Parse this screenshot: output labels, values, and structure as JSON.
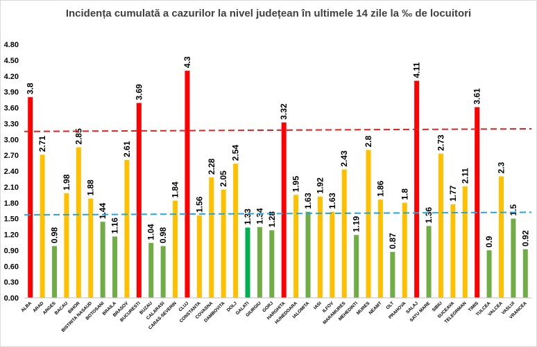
{
  "chart_data": {
    "type": "bar",
    "title": "Incidența cumulată a cazurilor la nivel județean în ultimele 14 zile la ‰ de locuitori",
    "xlabel": "",
    "ylabel": "",
    "ylim": [
      0,
      4.8
    ],
    "yticks": [
      "0.00",
      "0.30",
      "0.60",
      "0.90",
      "1.20",
      "1.50",
      "1.80",
      "2.10",
      "2.40",
      "2.70",
      "3.00",
      "3.30",
      "3.60",
      "3.90",
      "4.20",
      "4.50",
      "4.80"
    ],
    "ytick_values": [
      0,
      0.3,
      0.6,
      0.9,
      1.2,
      1.5,
      1.8,
      2.1,
      2.4,
      2.7,
      3.0,
      3.3,
      3.6,
      3.9,
      4.2,
      4.5,
      4.8
    ],
    "grid": false,
    "categories": [
      "ALBA",
      "ARAD",
      "ARGES",
      "BACAU",
      "BIHOR",
      "BISTRITA NASAUD",
      "BOTOSANI",
      "BRAILA",
      "BRASOV",
      "BUCURESTI",
      "BUZAU",
      "CALARASI",
      "CARAS-SEVERIN",
      "CLUJ",
      "CONSTANTA",
      "COVASNA",
      "DAMBOVITA",
      "DOLJ",
      "GALATI",
      "GIURGIU",
      "GORJ",
      "HARGHITA",
      "HUNEDOARA",
      "IALOMITA",
      "IASI",
      "ILFOV",
      "MARAMURES",
      "MEHEDINTI",
      "MURES",
      "NEAMT",
      "OLT",
      "PRAHOVA",
      "SALAJ",
      "SATU MARE",
      "SIBIU",
      "SUCEAVA",
      "TELEORMAN",
      "TIMIS",
      "TULCEA",
      "VALCEA",
      "VASLUI",
      "VRANCEA"
    ],
    "values": [
      3.8,
      2.71,
      0.98,
      1.98,
      2.85,
      1.88,
      1.44,
      1.16,
      2.61,
      3.69,
      1.04,
      0.98,
      1.84,
      4.3,
      1.56,
      2.28,
      2.05,
      2.54,
      1.33,
      1.34,
      1.28,
      3.32,
      1.95,
      1.63,
      1.92,
      1.63,
      2.43,
      1.19,
      2.8,
      1.86,
      0.87,
      1.8,
      4.11,
      1.36,
      2.73,
      1.77,
      2.11,
      3.61,
      0.9,
      2.3,
      1.5,
      0.92
    ],
    "value_labels": [
      "3.8",
      "2.71",
      "0.98",
      "1.98",
      "2.85",
      "1.88",
      "1.44",
      "1.16",
      "2.61",
      "3.69",
      "1.04",
      "0.98",
      "1.84",
      "4.3",
      "1.56",
      "2.28",
      "2.05",
      "2.54",
      "1.33",
      "1.34",
      "1.28",
      "3.32",
      "1.95",
      "1.63",
      "1.92",
      "1.63",
      "2.43",
      "1.19",
      "2.8",
      "1.86",
      "0.87",
      "1.8",
      "4.11",
      "1.36",
      "2.73",
      "1.77",
      "2.11",
      "3.61",
      "0.9",
      "2.3",
      "1.5",
      "0.92"
    ],
    "colors": {
      "red": "#ff0000",
      "yellow": "#ffc000",
      "green": "#70ad47",
      "bright_green": "#00b050",
      "red_line": "#e02020",
      "blue_line": "#1fa8d8"
    },
    "bar_color_keys": [
      "red",
      "yellow",
      "green",
      "yellow",
      "yellow",
      "yellow",
      "green",
      "green",
      "yellow",
      "red",
      "green",
      "green",
      "yellow",
      "red",
      "yellow",
      "yellow",
      "yellow",
      "yellow",
      "bright_green",
      "green",
      "green",
      "red",
      "yellow",
      "green",
      "yellow",
      "yellow",
      "yellow",
      "green",
      "yellow",
      "yellow",
      "green",
      "yellow",
      "red",
      "green",
      "yellow",
      "yellow",
      "yellow",
      "red",
      "green",
      "yellow",
      "green",
      "green"
    ],
    "reference_lines": [
      {
        "style": "dashed",
        "color_key": "red_line",
        "y_start": 3.15,
        "y_end": 3.2
      },
      {
        "style": "dashed",
        "color_key": "blue_line",
        "y_start": 1.57,
        "y_end": 1.62
      }
    ]
  }
}
